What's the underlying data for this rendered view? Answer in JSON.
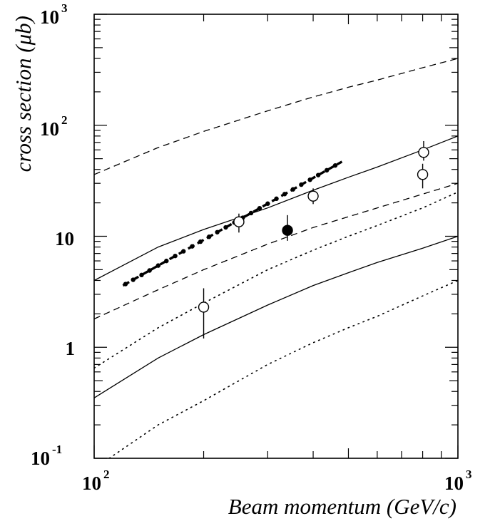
{
  "chart_data": {
    "type": "scatter",
    "title": "",
    "xlabel": "Beam momentum (GeV/c)",
    "ylabel": "cross section (μb)",
    "xscale": "log",
    "yscale": "log",
    "xlim": [
      100,
      1000
    ],
    "ylim": [
      0.1,
      1000
    ],
    "grid": false,
    "x_ticks": [
      {
        "value": 100,
        "base": "10",
        "exponent": "2"
      },
      {
        "value": 1000,
        "base": "10",
        "exponent": "3"
      }
    ],
    "y_ticks": [
      {
        "value": 0.1,
        "base": "10",
        "exponent": "-1"
      },
      {
        "value": 1,
        "base": "1",
        "exponent": ""
      },
      {
        "value": 10,
        "base": "10",
        "exponent": ""
      },
      {
        "value": 100,
        "base": "10",
        "exponent": "2"
      },
      {
        "value": 1000,
        "base": "10",
        "exponent": "3"
      }
    ],
    "curves": [
      {
        "style": "dashed",
        "x": [
          100,
          150,
          200,
          300,
          400,
          500,
          600,
          800,
          1000
        ],
        "y": [
          36,
          63,
          88,
          135,
          180,
          220,
          255,
          330,
          400
        ]
      },
      {
        "style": "solid",
        "x": [
          100,
          150,
          200,
          300,
          400,
          500,
          600,
          800,
          1000
        ],
        "y": [
          4,
          8,
          11.5,
          18,
          26,
          34,
          42,
          60,
          80
        ]
      },
      {
        "style": "dashed",
        "x": [
          100,
          150,
          200,
          300,
          400,
          500,
          600,
          800,
          1000
        ],
        "y": [
          1.8,
          3.3,
          5,
          8.5,
          12,
          15,
          18,
          24,
          30
        ]
      },
      {
        "style": "dotted",
        "x": [
          100,
          150,
          200,
          300,
          400,
          500,
          600,
          800,
          1000
        ],
        "y": [
          0.65,
          1.5,
          2.5,
          5,
          7.5,
          10,
          12.5,
          18,
          25
        ]
      },
      {
        "style": "solid",
        "x": [
          100,
          150,
          200,
          300,
          400,
          500,
          600,
          800,
          1000
        ],
        "y": [
          0.35,
          0.8,
          1.3,
          2.4,
          3.6,
          4.7,
          5.8,
          7.8,
          10
        ]
      },
      {
        "style": "dotted",
        "x": [
          110,
          150,
          200,
          300,
          400,
          500,
          600,
          800,
          1000
        ],
        "y": [
          0.1,
          0.2,
          0.33,
          0.7,
          1.1,
          1.5,
          1.9,
          2.9,
          4
        ]
      }
    ],
    "fit": {
      "style": "thick-dashed-with-dots",
      "x": [
        120,
        480
      ],
      "y": [
        3.6,
        47
      ],
      "dot_x": [
        122,
        128,
        135,
        142,
        150,
        158,
        167,
        176,
        186,
        196,
        207,
        218,
        230,
        243,
        256,
        270,
        285,
        300,
        317,
        334,
        352,
        371,
        392,
        413,
        436,
        460
      ]
    },
    "points": [
      {
        "x": 200,
        "y": 2.3,
        "y_low": 1.2,
        "y_high": 3.4,
        "marker": "open"
      },
      {
        "x": 250,
        "y": 13.5,
        "y_low": 10.8,
        "y_high": 16,
        "marker": "open"
      },
      {
        "x": 340,
        "y": 11.3,
        "y_low": 9.1,
        "y_high": 15.5,
        "marker": "filled"
      },
      {
        "x": 400,
        "y": 23,
        "y_low": 19.5,
        "y_high": 27,
        "marker": "open"
      },
      {
        "x": 800,
        "y": 36,
        "y_low": 27,
        "y_high": 45,
        "marker": "open"
      },
      {
        "x": 805,
        "y": 57,
        "y_low": 48,
        "y_high": 72,
        "marker": "open"
      }
    ]
  }
}
